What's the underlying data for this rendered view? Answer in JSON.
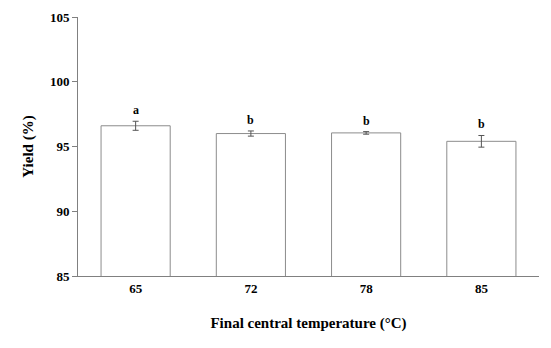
{
  "chart_data": {
    "type": "bar",
    "x_label": "Final central temperature (°C)",
    "y_label": "Yield (%)",
    "categories": [
      "65",
      "72",
      "78",
      "85"
    ],
    "values": [
      96.6,
      96.0,
      96.05,
      95.4
    ],
    "errors": [
      0.35,
      0.2,
      0.1,
      0.45
    ],
    "annotations": [
      {
        "category": "65",
        "text": "a"
      },
      {
        "category": "72",
        "text": "b"
      },
      {
        "category": "78",
        "text": "b"
      },
      {
        "category": "85",
        "text": "b"
      }
    ],
    "color": "#ffffff",
    "ylim": [
      85,
      105
    ],
    "yticks": [
      85,
      90,
      95,
      100,
      105
    ],
    "grid": false
  }
}
